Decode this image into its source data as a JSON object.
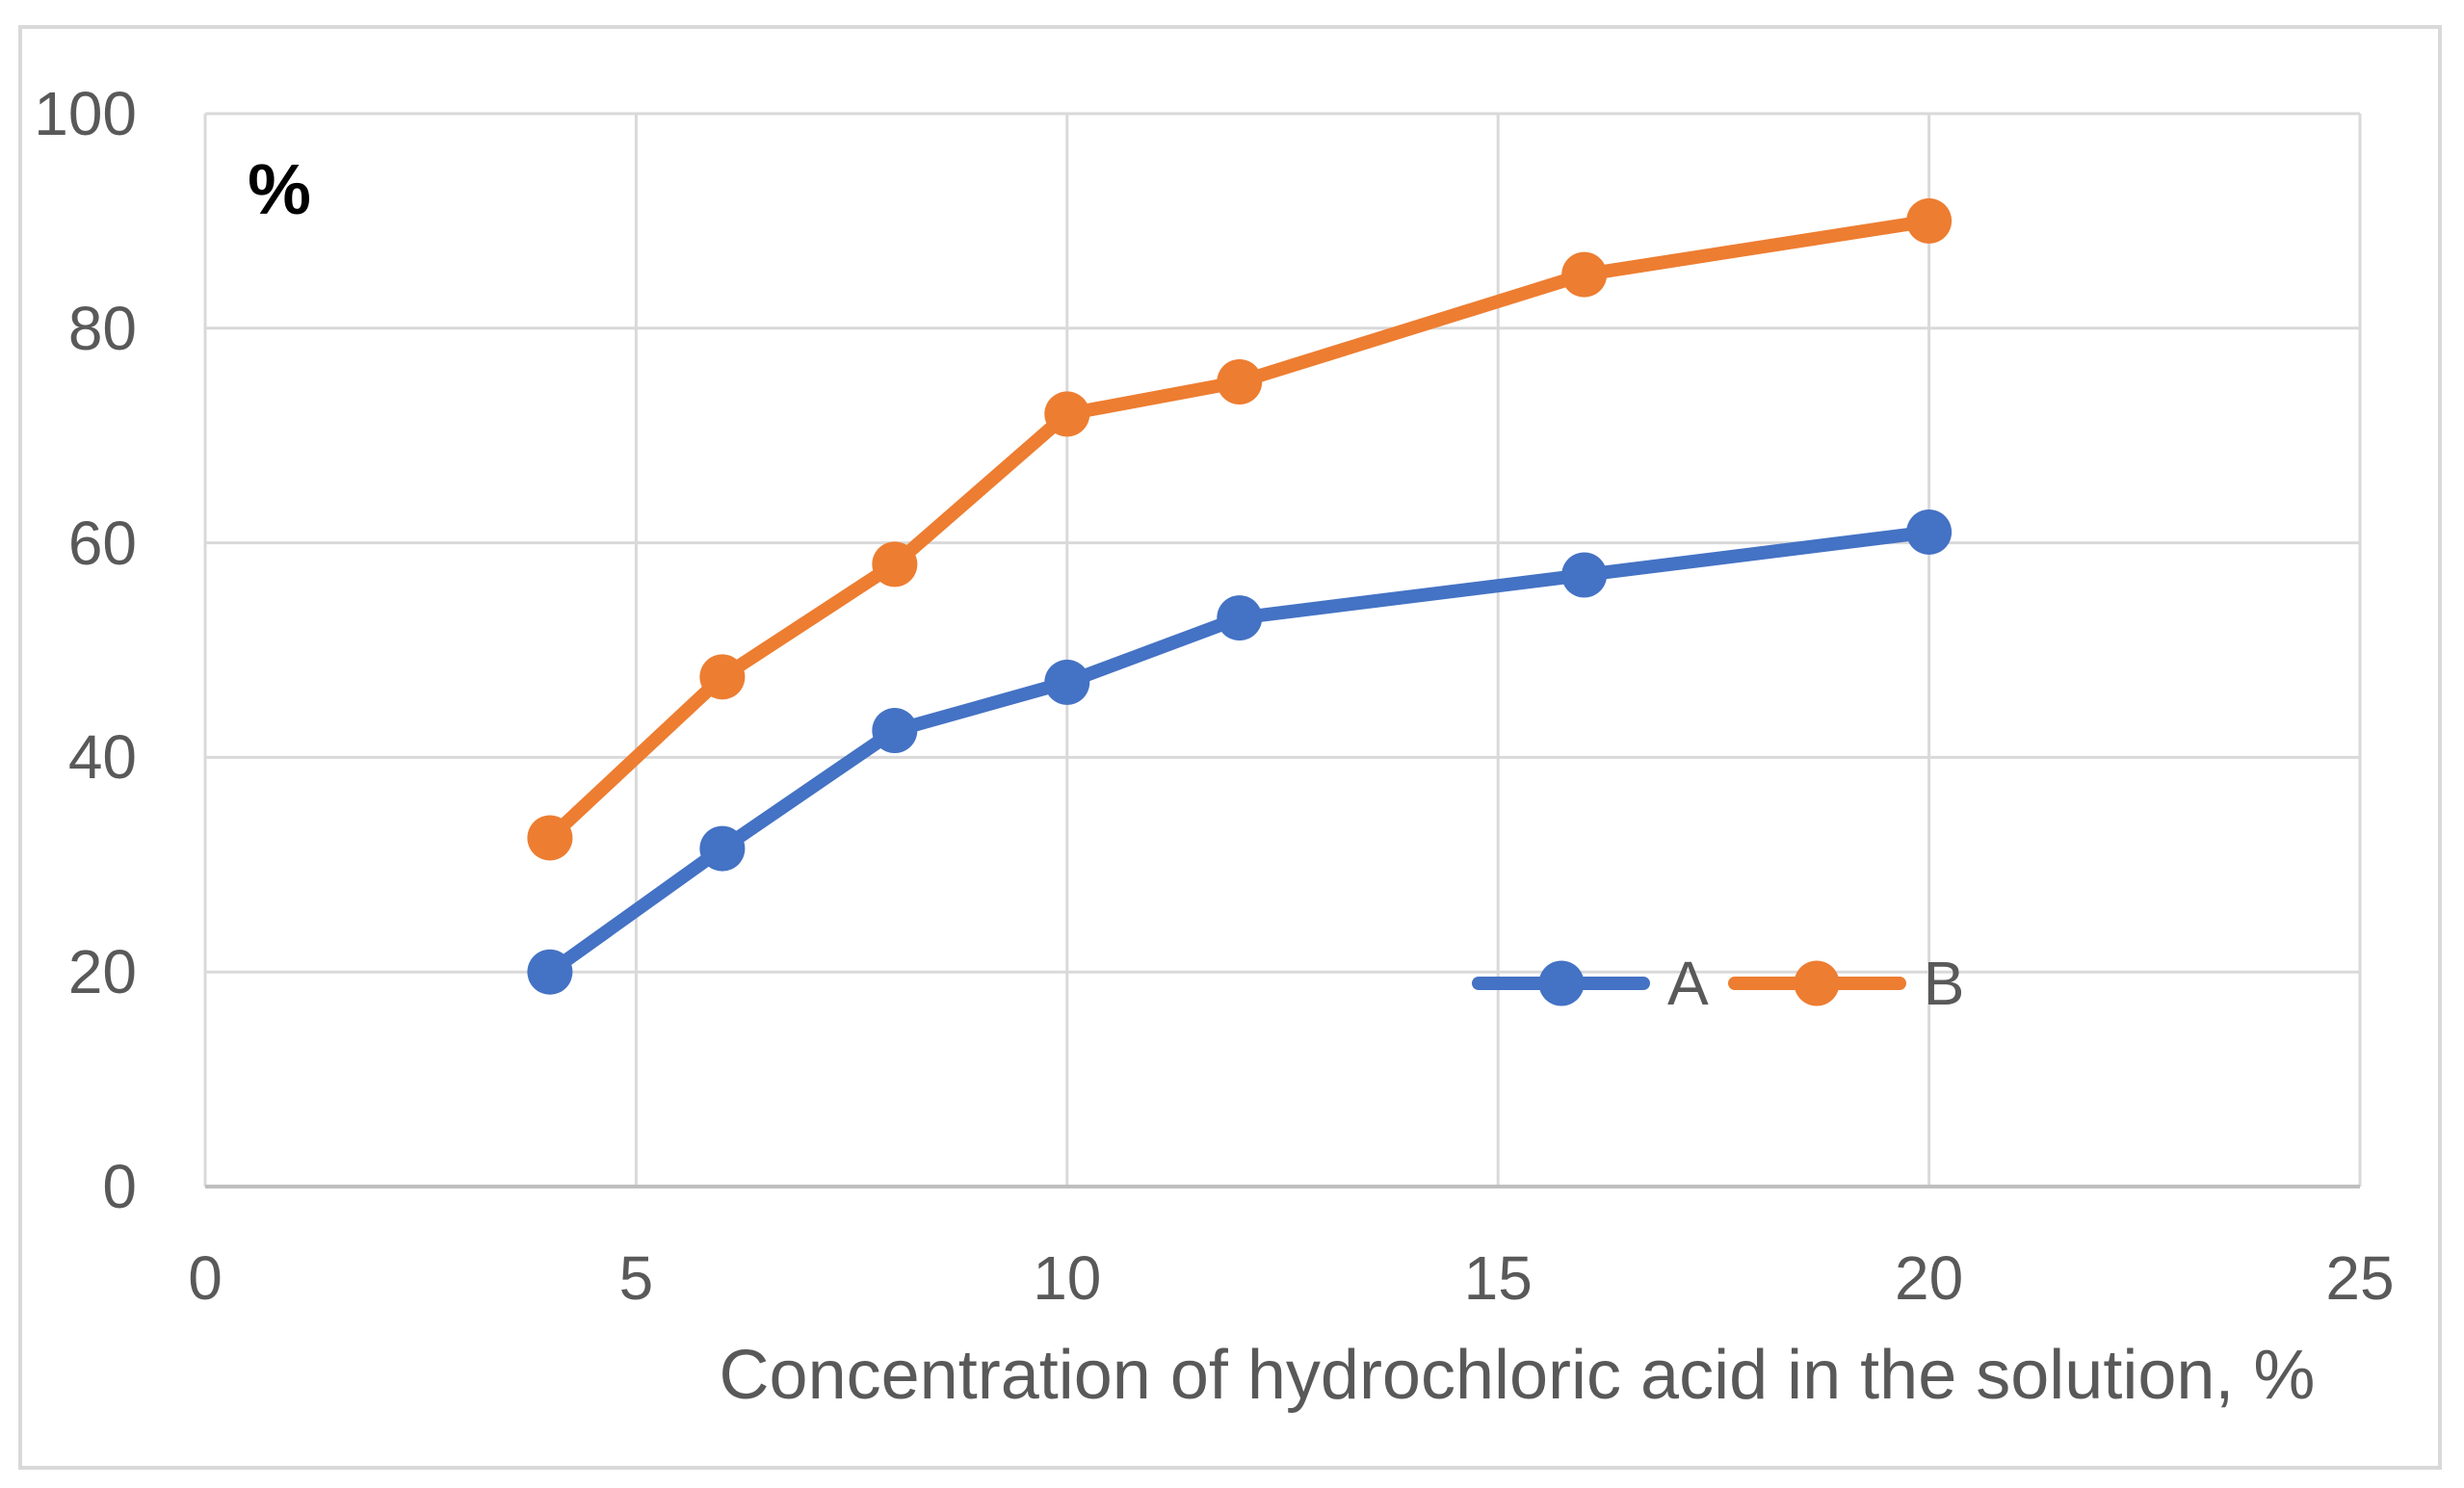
{
  "figure": {
    "background": "#FFFFFF",
    "frame_border_color": "#D9D9D9"
  },
  "axis_unit_label": "%",
  "x_axis_title": "Concentration of hydrochloric acid in the solution, %",
  "legend": {
    "items": [
      {
        "label": "A",
        "color": "#4472C4"
      },
      {
        "label": "B",
        "color": "#ED7D31"
      }
    ]
  },
  "chart_data": {
    "type": "line",
    "x": [
      4,
      6,
      8,
      10,
      12,
      16,
      20
    ],
    "series": [
      {
        "name": "A",
        "color": "#4472C4",
        "values": [
          20,
          31.5,
          42.5,
          47,
          53,
          57,
          61
        ]
      },
      {
        "name": "B",
        "color": "#ED7D31",
        "values": [
          32.5,
          47.5,
          58,
          72,
          75,
          85,
          90
        ]
      }
    ],
    "title": "",
    "xlabel": "Concentration of hydrochloric acid in the solution, %",
    "ylabel": "%",
    "xlim": [
      0,
      25
    ],
    "ylim": [
      0,
      100
    ],
    "x_ticks": [
      "0",
      "5",
      "10",
      "15",
      "20",
      "25"
    ],
    "y_ticks": [
      "0",
      "20",
      "40",
      "60",
      "80",
      "100"
    ],
    "grid": true,
    "marker": "circle",
    "legend_position": "inside-bottom-right",
    "colors": {
      "gridline": "#D9D9D9",
      "axis_line": "#BFBFBF",
      "tick_text": "#595959",
      "axis_title_text": "#595959"
    }
  }
}
